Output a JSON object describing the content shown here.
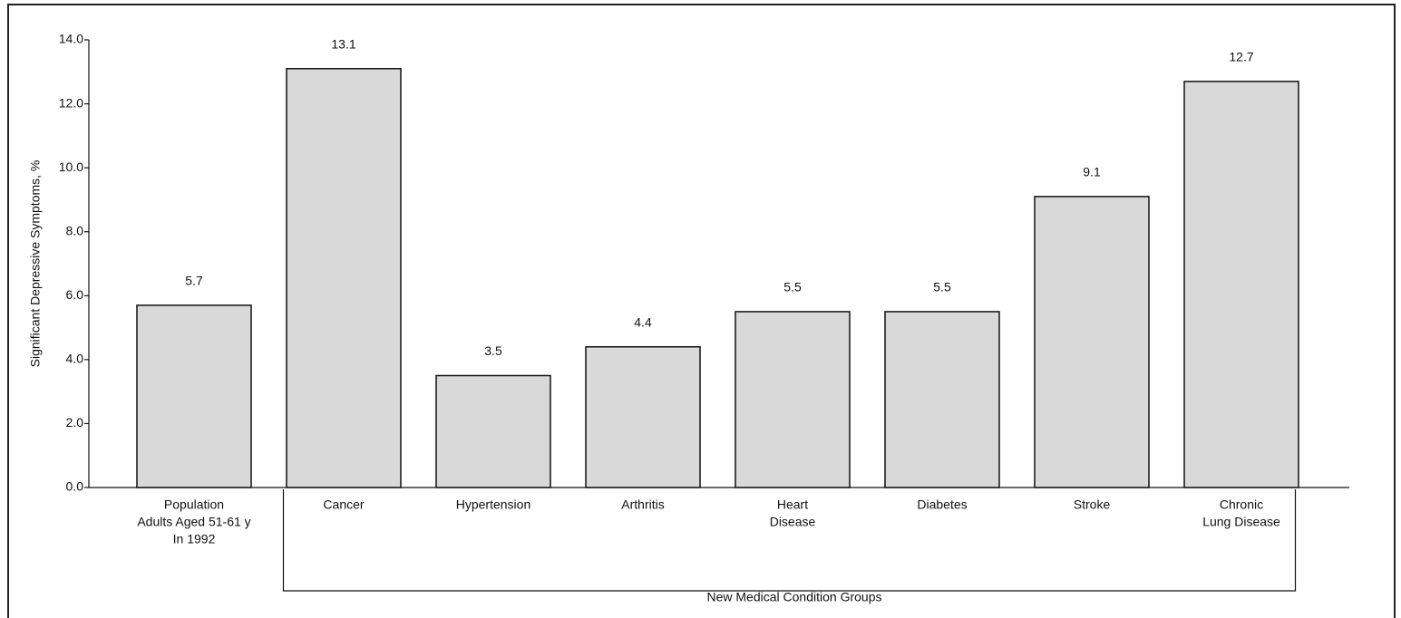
{
  "chart_data": {
    "type": "bar",
    "y_label": "Significant Depressive Symptoms, %",
    "group_label": "New Medical Condition Groups",
    "categories": [
      [
        "Population",
        "Adults Aged 51-61 y",
        "In 1992"
      ],
      [
        "Cancer"
      ],
      [
        "Hypertension"
      ],
      [
        "Arthritis"
      ],
      [
        "Heart",
        "Disease"
      ],
      [
        "Diabetes"
      ],
      [
        "Stroke"
      ],
      [
        "Chronic",
        "Lung Disease"
      ]
    ],
    "values": [
      5.7,
      13.1,
      3.5,
      4.4,
      5.5,
      5.5,
      9.1,
      12.7
    ],
    "color": "#d9d9d9",
    "ylim": [
      0,
      14
    ],
    "yticks": [
      {
        "value": 0,
        "label": "0.0"
      },
      {
        "value": 2,
        "label": "2.0"
      },
      {
        "value": 4,
        "label": "4.0"
      },
      {
        "value": 6,
        "label": "6.0"
      },
      {
        "value": 8,
        "label": "8.0"
      },
      {
        "value": 10,
        "label": "10.0"
      },
      {
        "value": 12,
        "label": "12.0"
      },
      {
        "value": 14,
        "label": "14.0"
      }
    ],
    "grid": false
  }
}
